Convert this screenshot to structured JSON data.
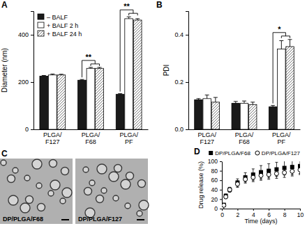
{
  "chart_data": [
    {
      "type": "bar",
      "title": "A",
      "y_label": "Diameter (nm)",
      "categories": [
        "PLGA/F127",
        "PLGA/F68",
        "PLGA/PF"
      ],
      "series": [
        {
          "name": "– BALF",
          "color": "#1a1a1a",
          "values": [
            225,
            208,
            148
          ],
          "errors": [
            3,
            3,
            3
          ]
        },
        {
          "name": "+ BALF 2 h",
          "color": "#ffffff",
          "values": [
            230,
            258,
            468
          ],
          "errors": [
            4,
            4,
            8
          ]
        },
        {
          "name": "+ BALF 24 h",
          "color": "#ffffff",
          "line_style": "hatched",
          "values": [
            230,
            258,
            462
          ],
          "errors": [
            3,
            4,
            6
          ]
        }
      ],
      "ylim": [
        0,
        500
      ],
      "yticks": [
        0,
        200,
        400
      ],
      "legend": "upper left",
      "annotations": [
        {
          "text": "**",
          "category": "PLGA/F68"
        },
        {
          "text": "**",
          "category": "PLGA/PF"
        }
      ]
    },
    {
      "type": "bar",
      "title": "B",
      "y_label": "PDI",
      "categories": [
        "PLGA/F127",
        "PLGA/F68",
        "PLGA/PF"
      ],
      "series": [
        {
          "color": "#1a1a1a",
          "values": [
            0.125,
            0.11,
            0.095
          ],
          "errors": [
            0.005,
            0.008,
            0.006
          ]
        },
        {
          "color": "#ffffff",
          "values": [
            0.13,
            0.11,
            0.34
          ],
          "errors": [
            0.015,
            0.01,
            0.035
          ]
        },
        {
          "color": "#ffffff",
          "line_style": "hatched",
          "values": [
            0.115,
            0.105,
            0.35
          ],
          "errors": [
            0.02,
            0.01,
            0.03
          ]
        }
      ],
      "ylim": [
        0,
        0.5
      ],
      "yticks": [
        {
          "value": 0,
          "label": "0.0"
        },
        0.2,
        0.4
      ],
      "annotations": [
        {
          "text": "*",
          "category": "PLGA/PF"
        }
      ]
    },
    {
      "type": "image",
      "title": "C",
      "labels": [
        "DP/PLGA/F68",
        "DP/PLGA/F127"
      ]
    },
    {
      "type": "scatter",
      "title": "D",
      "x_label": "Time (days)",
      "y_label": "Drug release (%)",
      "x": [
        0,
        0.25,
        0.5,
        1,
        2,
        3,
        4,
        5,
        6,
        7,
        8,
        9,
        10
      ],
      "xlim": [
        0,
        10
      ],
      "xticks": [
        0,
        2,
        4,
        6,
        8,
        10
      ],
      "ylim": [
        0,
        100
      ],
      "yticks": [
        0,
        20,
        40,
        60,
        80,
        100
      ],
      "legend": "top",
      "series": [
        {
          "name": "DP/PLGA/F68",
          "color": "#000000",
          "marker": "square",
          "values": [
            0,
            8,
            27,
            40,
            55,
            66,
            72,
            77,
            80,
            83,
            86,
            88,
            90
          ],
          "errors": [
            0,
            2,
            4,
            5,
            8,
            10,
            12,
            14,
            15,
            15,
            15,
            16,
            16
          ]
        },
        {
          "name": "DP/PLGA/F127",
          "color": "#000000",
          "marker": "circle",
          "values": [
            0,
            7,
            25,
            40,
            52,
            62,
            66,
            70,
            72,
            74,
            76,
            79,
            82
          ],
          "errors": [
            0,
            2,
            4,
            5,
            7,
            8,
            9,
            10,
            10,
            10,
            10,
            10,
            10
          ]
        }
      ]
    }
  ]
}
